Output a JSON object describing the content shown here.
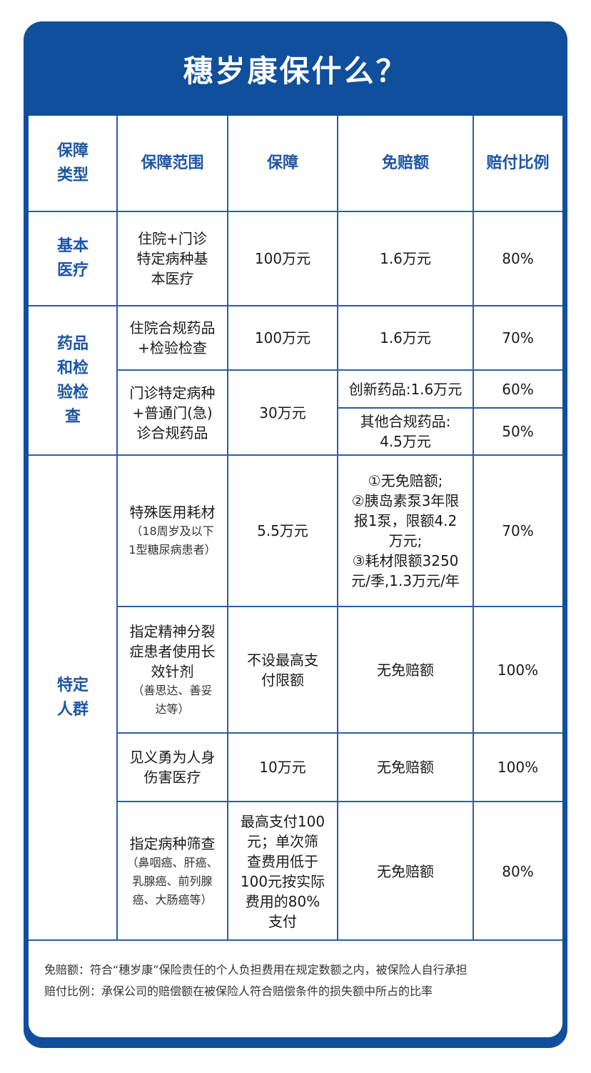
{
  "title": "穗岁康保什么？",
  "headers": {
    "type": "保障\n类型",
    "scope": "保障范围",
    "coverage": "保障",
    "deductible": "免赔额",
    "ratio": "赔付比例"
  },
  "rows": {
    "basic": {
      "type": "基本\n医疗",
      "scope": "住院+门诊\n特定病种基\n本医疗",
      "coverage": "100万元",
      "deductible": "1.6万元",
      "ratio": "80%"
    },
    "drugs_type": "药品\n和检\n验检\n查",
    "drugs_inpatient": {
      "scope": "住院合规药品\n+检验检查",
      "coverage": "100万元",
      "deductible": "1.6万元",
      "ratio": "70%"
    },
    "drugs_outpatient": {
      "scope": "门诊特定病种\n+普通门(急)\n诊合规药品",
      "coverage": "30万元",
      "deductible_innovative": "创新药品:1.6万元",
      "ratio_innovative": "60%",
      "deductible_other": "其他合规药品:\n4.5万元",
      "ratio_other": "50%"
    },
    "special_type": "特定\n人群",
    "consumables": {
      "scope": "特殊医用耗材",
      "scope_note": "（18周岁及以下\n1型糖尿病患者）",
      "coverage": "5.5万元",
      "deductible": "①无免赔额;\n②胰岛素泵3年限\n报1泵，限额4.2\n万元;\n③耗材限额3250\n元/季,1.3万元/年",
      "ratio": "70%"
    },
    "schizophrenia": {
      "scope": "指定精神分裂\n症患者使用长\n效针剂",
      "scope_note": "（善思达、善妥\n达等）",
      "coverage": "不设最高支\n付限额",
      "deductible": "无免赔额",
      "ratio": "100%"
    },
    "heroism": {
      "scope": "见义勇为人身\n伤害医疗",
      "coverage": "10万元",
      "deductible": "无免赔额",
      "ratio": "100%"
    },
    "screening": {
      "scope": "指定病种筛查",
      "scope_note": "（鼻咽癌、肝癌、\n乳腺癌、前列腺\n癌、大肠癌等）",
      "coverage": "最高支付100\n元；单次筛\n查费用低于\n100元按实际\n费用的80%\n支付",
      "deductible": "无免赔额",
      "ratio": "80%"
    }
  },
  "notes": {
    "deductible_def": "免赔额：符合“穗岁康”保险责任的个人负担费用在规定数额之内，被保险人自行承担",
    "ratio_def": "赔付比例：承保公司的赔偿额在被保险人符合赔偿条件的损失额中所占的比率"
  },
  "colors": {
    "brand_blue": "#0f4f9c",
    "header_text": "#1d55a6",
    "grid": "#2a5ea8"
  }
}
